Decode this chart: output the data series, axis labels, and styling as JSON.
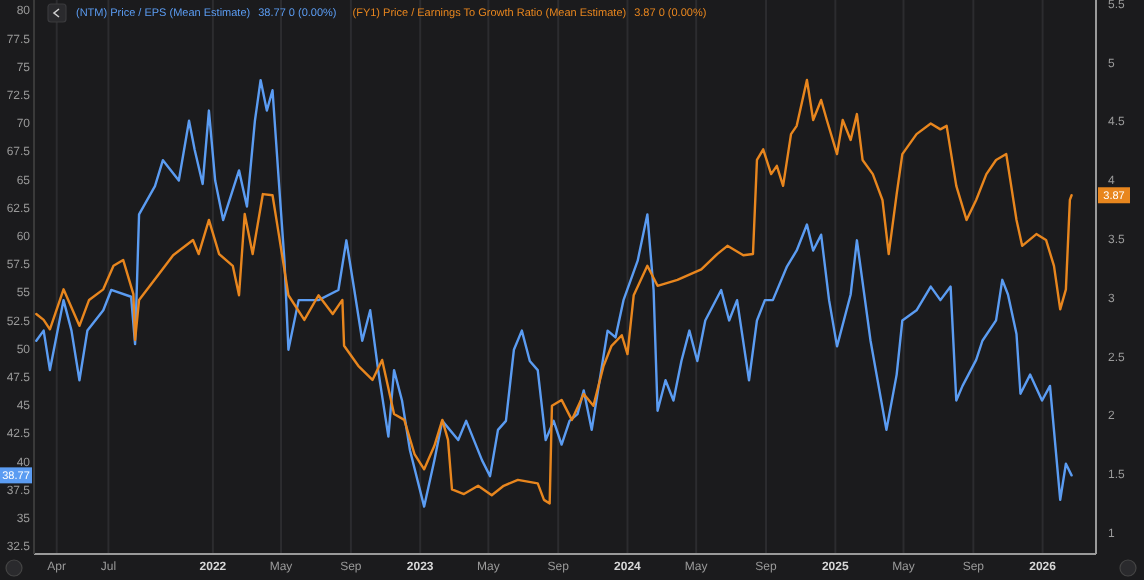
{
  "chart_data": {
    "type": "line",
    "legend": "top left",
    "grid": "x",
    "line_style": "solid",
    "marker": "none",
    "xlim": [
      "2021-02-20",
      "2026-04-05"
    ],
    "ylim": [
      31.8,
      80.9
    ],
    "y2lim": [
      0.82,
      5.53
    ],
    "xticks": [
      {
        "value": "2021-04-01",
        "label": "Apr"
      },
      {
        "value": "2021-07-01",
        "label": "Jul"
      },
      {
        "value": "2022-01-01",
        "label": "2022"
      },
      {
        "value": "2022-05-01",
        "label": "May"
      },
      {
        "value": "2022-09-01",
        "label": "Sep"
      },
      {
        "value": "2023-01-01",
        "label": "2023"
      },
      {
        "value": "2023-05-01",
        "label": "May"
      },
      {
        "value": "2023-09-01",
        "label": "Sep"
      },
      {
        "value": "2024-01-01",
        "label": "2024"
      },
      {
        "value": "2024-05-01",
        "label": "May"
      },
      {
        "value": "2024-09-01",
        "label": "Sep"
      },
      {
        "value": "2025-01-01",
        "label": "2025"
      },
      {
        "value": "2025-05-01",
        "label": "May"
      },
      {
        "value": "2025-09-01",
        "label": "Sep"
      },
      {
        "value": "2026-01-01",
        "label": "2026"
      }
    ],
    "yticks": [
      32.5,
      35,
      37.5,
      40,
      42.5,
      45,
      47.5,
      50,
      52.5,
      55,
      57.5,
      60,
      62.5,
      65,
      67.5,
      70,
      72.5,
      75,
      77.5,
      80
    ],
    "y2ticks": [
      1,
      1.5,
      2,
      2.5,
      3,
      3.5,
      4,
      4.5,
      5,
      5.5
    ],
    "annotations": [
      "38.77 0 (0.00%)",
      "3.87 0 (0.00%)",
      "38.77",
      "3.87"
    ],
    "series": [
      {
        "name": "(NTM) Price / EPS (Mean Estimate)",
        "color": "#5b9cf2",
        "x": [
          "2021-02-24",
          "2021-03-09",
          "2021-03-20",
          "2021-04-13",
          "2021-04-27",
          "2021-05-11",
          "2021-05-25",
          "2021-06-22",
          "2021-07-06",
          "2021-08-10",
          "2021-08-17",
          "2021-08-24",
          "2021-09-21",
          "2021-10-05",
          "2021-11-02",
          "2021-11-20",
          "2021-11-30",
          "2021-12-14",
          "2021-12-25",
          "2022-01-05",
          "2022-01-19",
          "2022-02-16",
          "2022-03-02",
          "2022-03-16",
          "2022-03-26",
          "2022-04-06",
          "2022-04-16",
          "2022-04-27",
          "2022-05-07",
          "2022-05-14",
          "2022-06-01",
          "2022-07-06",
          "2022-08-10",
          "2022-08-24",
          "2022-09-07",
          "2022-09-21",
          "2022-10-05",
          "2022-10-19",
          "2022-11-06",
          "2022-11-16",
          "2022-11-30",
          "2022-12-14",
          "2023-01-08",
          "2023-01-26",
          "2023-02-09",
          "2023-03-09",
          "2023-03-23",
          "2023-04-20",
          "2023-05-04",
          "2023-05-18",
          "2023-06-01",
          "2023-06-15",
          "2023-06-29",
          "2023-07-13",
          "2023-07-27",
          "2023-08-10",
          "2023-08-24",
          "2023-09-07",
          "2023-09-21",
          "2023-10-05",
          "2023-10-16",
          "2023-10-30",
          "2023-11-13",
          "2023-11-27",
          "2023-12-11",
          "2023-12-25",
          "2024-01-19",
          "2024-02-05",
          "2024-02-16",
          "2024-02-23",
          "2024-03-08",
          "2024-03-22",
          "2024-04-05",
          "2024-04-19",
          "2024-05-03",
          "2024-05-17",
          "2024-06-14",
          "2024-06-28",
          "2024-07-12",
          "2024-08-02",
          "2024-08-16",
          "2024-08-30",
          "2024-09-13",
          "2024-10-08",
          "2024-10-25",
          "2024-11-12",
          "2024-11-23",
          "2024-12-07",
          "2024-12-21",
          "2025-01-04",
          "2025-01-28",
          "2025-02-08",
          "2025-03-04",
          "2025-04-01",
          "2025-04-19",
          "2025-04-29",
          "2025-05-24",
          "2025-06-18",
          "2025-07-05",
          "2025-07-23",
          "2025-08-02",
          "2025-08-13",
          "2025-09-06",
          "2025-09-17",
          "2025-10-11",
          "2025-10-22",
          "2025-11-01",
          "2025-11-16",
          "2025-11-23",
          "2025-12-10",
          "2025-12-31",
          "2026-01-14",
          "2026-02-01",
          "2026-02-11",
          "2026-02-21"
        ],
        "values": [
          50.7,
          51.6,
          48.1,
          54.3,
          51.6,
          47.2,
          51.6,
          53.4,
          55.2,
          54.6,
          50.4,
          61.9,
          64.4,
          66.7,
          64.9,
          70.2,
          67.6,
          64.6,
          71.1,
          64.9,
          61.4,
          65.8,
          62.6,
          70.2,
          73.8,
          71.1,
          72.9,
          64.9,
          57.8,
          49.9,
          54.3,
          54.3,
          55.2,
          59.6,
          55.2,
          50.7,
          53.4,
          48.1,
          42.2,
          48.1,
          45.4,
          41.0,
          36.0,
          40.1,
          43.6,
          41.9,
          43.6,
          40.1,
          38.7,
          42.8,
          43.6,
          49.9,
          51.6,
          48.9,
          48.1,
          41.9,
          43.6,
          41.5,
          43.6,
          44.2,
          46.3,
          42.8,
          47.2,
          51.6,
          51.0,
          54.3,
          57.8,
          61.9,
          55.2,
          44.5,
          47.2,
          45.4,
          48.9,
          51.6,
          48.9,
          52.5,
          55.2,
          52.5,
          54.3,
          47.2,
          52.5,
          54.3,
          54.3,
          57.3,
          58.7,
          61.0,
          58.7,
          60.1,
          54.3,
          50.2,
          54.8,
          59.6,
          50.7,
          42.8,
          47.7,
          52.5,
          53.4,
          55.5,
          54.3,
          55.5,
          45.4,
          46.7,
          49.0,
          50.7,
          52.5,
          56.1,
          54.8,
          51.3,
          46.0,
          47.7,
          45.4,
          46.7,
          36.6,
          39.8,
          38.77
        ]
      },
      {
        "name": "(FY1) Price / Earnings To Growth Ratio (Mean Estimate)",
        "color": "#e8861e",
        "axis": "y2",
        "x": [
          "2021-02-24",
          "2021-03-09",
          "2021-03-20",
          "2021-04-13",
          "2021-05-11",
          "2021-05-28",
          "2021-06-22",
          "2021-07-10",
          "2021-07-27",
          "2021-08-14",
          "2021-08-17",
          "2021-08-24",
          "2021-09-28",
          "2021-10-23",
          "2021-11-27",
          "2021-12-07",
          "2021-12-25",
          "2022-01-12",
          "2022-02-05",
          "2022-02-16",
          "2022-02-26",
          "2022-03-12",
          "2022-03-30",
          "2022-04-16",
          "2022-04-27",
          "2022-05-14",
          "2022-06-11",
          "2022-07-06",
          "2022-07-31",
          "2022-08-17",
          "2022-08-20",
          "2022-09-14",
          "2022-10-09",
          "2022-10-26",
          "2022-11-16",
          "2022-12-04",
          "2022-12-22",
          "2023-01-08",
          "2023-01-26",
          "2023-02-09",
          "2023-02-19",
          "2023-02-26",
          "2023-03-19",
          "2023-04-13",
          "2023-05-07",
          "2023-05-28",
          "2023-06-22",
          "2023-07-27",
          "2023-08-07",
          "2023-08-17",
          "2023-08-21",
          "2023-09-07",
          "2023-09-25",
          "2023-10-16",
          "2023-11-02",
          "2023-11-20",
          "2023-12-04",
          "2023-12-22",
          "2024-01-01",
          "2024-01-12",
          "2024-02-05",
          "2024-02-23",
          "2024-03-29",
          "2024-05-10",
          "2024-06-07",
          "2024-06-25",
          "2024-07-23",
          "2024-08-09",
          "2024-08-16",
          "2024-08-27",
          "2024-09-10",
          "2024-09-20",
          "2024-10-01",
          "2024-10-15",
          "2024-10-25",
          "2024-11-12",
          "2024-11-23",
          "2024-12-07",
          "2024-12-17",
          "2025-01-04",
          "2025-01-14",
          "2025-01-28",
          "2025-02-08",
          "2025-02-18",
          "2025-03-08",
          "2025-03-25",
          "2025-04-05",
          "2025-04-19",
          "2025-04-29",
          "2025-05-24",
          "2025-06-18",
          "2025-07-05",
          "2025-07-16",
          "2025-08-02",
          "2025-08-20",
          "2025-09-06",
          "2025-09-24",
          "2025-10-11",
          "2025-10-29",
          "2025-11-16",
          "2025-11-26",
          "2025-12-21",
          "2026-01-07",
          "2026-01-21",
          "2026-02-01",
          "2026-02-11",
          "2026-02-18",
          "2026-02-21"
        ],
        "values": [
          2.86,
          2.81,
          2.73,
          3.07,
          2.76,
          2.98,
          3.07,
          3.27,
          3.32,
          3.03,
          2.64,
          2.98,
          3.2,
          3.36,
          3.49,
          3.37,
          3.66,
          3.37,
          3.27,
          3.02,
          3.71,
          3.37,
          3.88,
          3.87,
          3.54,
          3.02,
          2.81,
          3.02,
          2.86,
          2.98,
          2.59,
          2.42,
          2.3,
          2.47,
          2.01,
          1.96,
          1.67,
          1.54,
          1.74,
          1.96,
          1.79,
          1.37,
          1.33,
          1.4,
          1.32,
          1.4,
          1.45,
          1.42,
          1.28,
          1.25,
          2.08,
          2.13,
          1.96,
          2.18,
          2.08,
          2.42,
          2.59,
          2.68,
          2.52,
          3.02,
          3.27,
          3.1,
          3.15,
          3.24,
          3.37,
          3.44,
          3.36,
          3.37,
          4.17,
          4.26,
          4.05,
          4.12,
          3.95,
          4.39,
          4.46,
          4.85,
          4.51,
          4.68,
          4.51,
          4.22,
          4.51,
          4.34,
          4.56,
          4.17,
          4.05,
          3.83,
          3.37,
          3.88,
          4.22,
          4.39,
          4.48,
          4.43,
          4.46,
          3.95,
          3.66,
          3.83,
          4.05,
          4.17,
          4.22,
          3.66,
          3.44,
          3.54,
          3.49,
          3.27,
          2.9,
          3.07,
          3.83,
          3.87
        ]
      }
    ]
  }
}
